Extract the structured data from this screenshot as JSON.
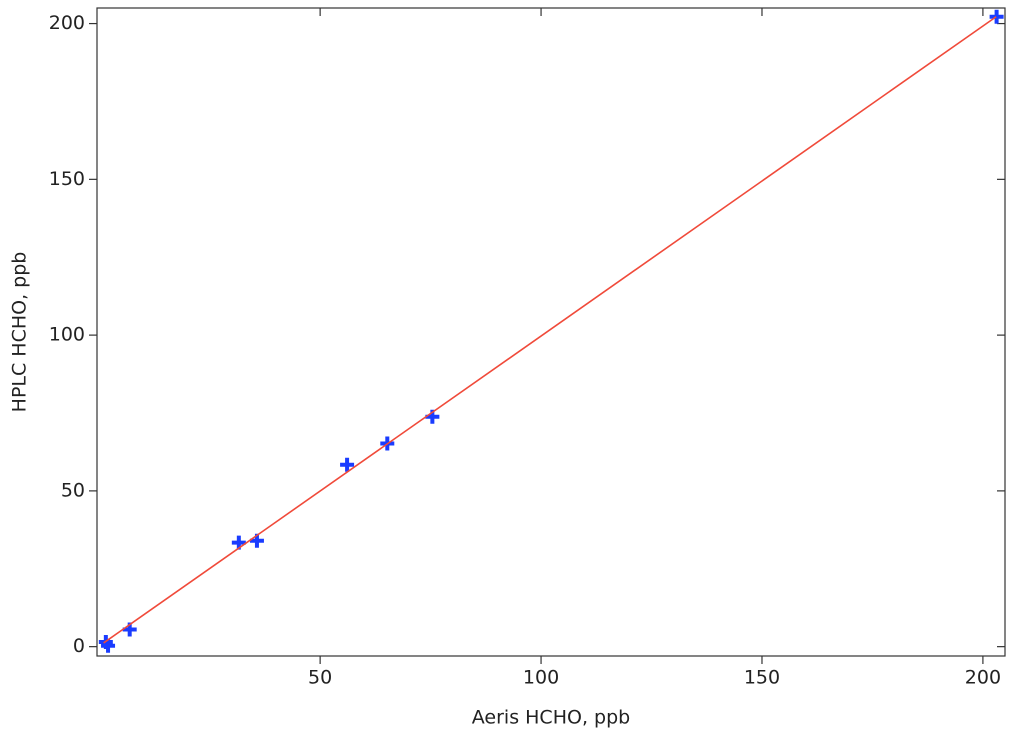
{
  "chart_data": {
    "type": "scatter",
    "x_label": "Aeris HCHO, ppb",
    "y_label": "HPLC HCHO, ppb",
    "xlim": [
      -0.5,
      205
    ],
    "ylim": [
      -3,
      205
    ],
    "xticks": [
      50,
      100,
      150,
      200
    ],
    "yticks": [
      0,
      50,
      100,
      150,
      200
    ],
    "series": [
      {
        "type": "scatter",
        "marker": "plus",
        "color": "#1a3cff",
        "x": [
          1.5,
          2,
          6.9,
          31.6,
          35.7,
          56.1,
          65.2,
          75.4,
          203.1
        ],
        "values": [
          1.5,
          0.3,
          5.5,
          33.4,
          34,
          58.4,
          65.2,
          73.8,
          202.2
        ]
      },
      {
        "type": "line",
        "color": "#f04a3a",
        "x": [
          1,
          203
        ],
        "values": [
          1.2,
          202.2
        ]
      }
    ]
  }
}
